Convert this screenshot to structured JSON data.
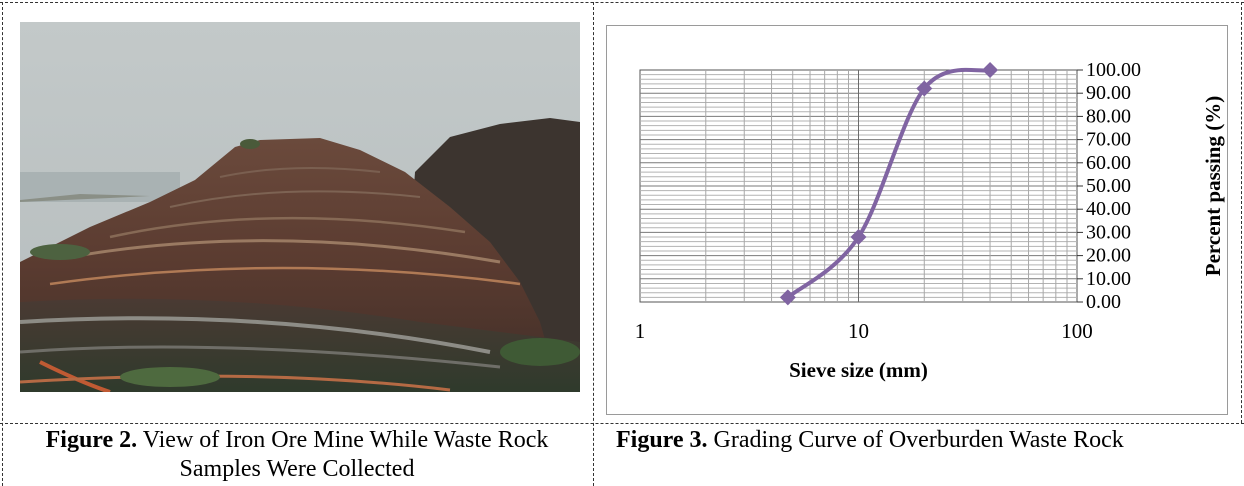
{
  "figure2": {
    "photo_alt": "iron-ore-mine-photo",
    "caption_label": "Figure 2.",
    "caption_text": " View of Iron Ore Mine While Waste Rock Samples Were Collected"
  },
  "figure3": {
    "caption_label": "Figure 3.",
    "caption_text": " Grading Curve of Overburden Waste Rock"
  },
  "chart_data": {
    "type": "line",
    "xscale": "log",
    "xlim": [
      1,
      100
    ],
    "ylim": [
      0,
      100
    ],
    "xlabel": "Sieve size (mm)",
    "ylabel": "Percent passing (%)",
    "x_ticks": [
      "1",
      "10",
      "100"
    ],
    "y_ticks": [
      "0.00",
      "10.00",
      "20.00",
      "30.00",
      "40.00",
      "50.00",
      "60.00",
      "70.00",
      "80.00",
      "90.00",
      "100.00"
    ],
    "grid": true,
    "series": [
      {
        "x": [
          4.75,
          10,
          20,
          40
        ],
        "y": [
          2,
          28,
          92,
          100
        ],
        "color": "#8064a2",
        "marker": "diamond"
      }
    ]
  }
}
